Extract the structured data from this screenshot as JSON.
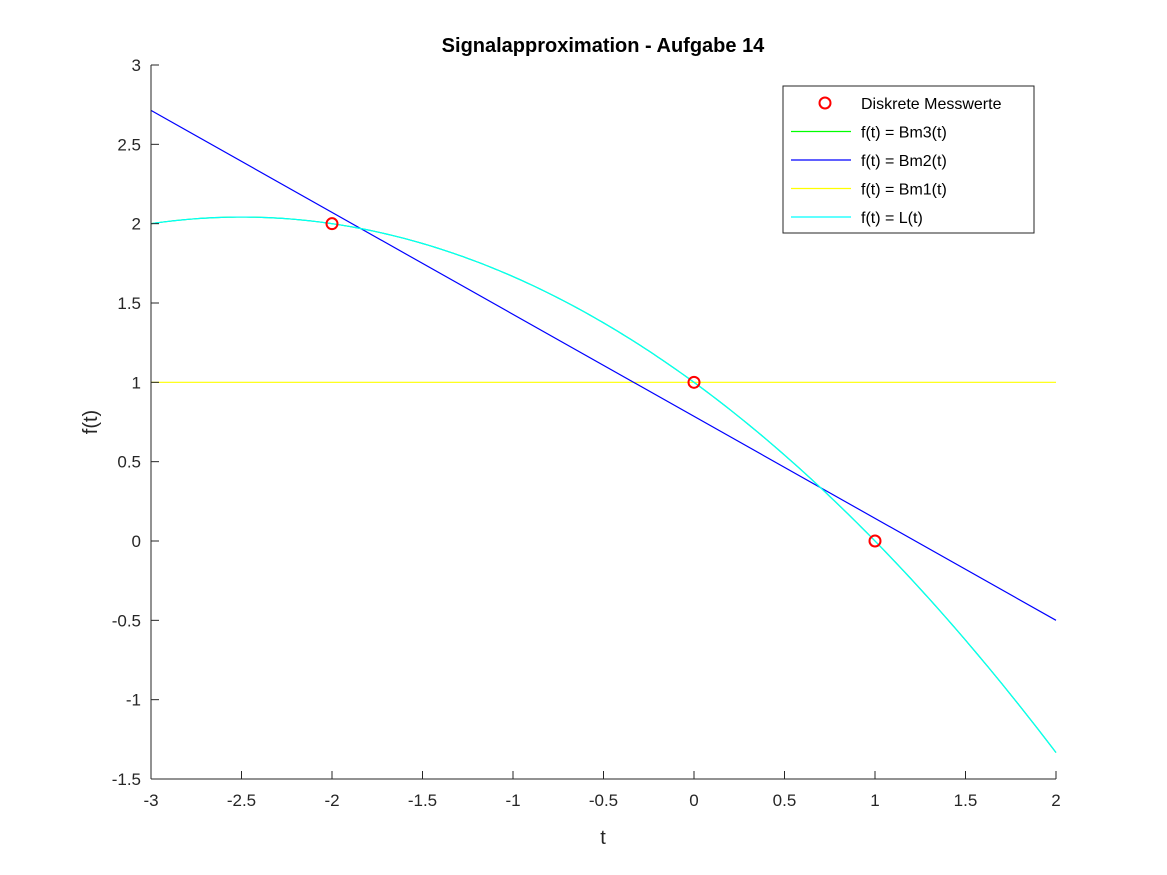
{
  "chart_data": {
    "type": "line",
    "title": "Signalapproximation - Aufgabe 14",
    "xlabel": "t",
    "ylabel": "f(t)",
    "xlim": [
      -3,
      2
    ],
    "ylim": [
      -1.5,
      3
    ],
    "xticks": [
      -3,
      -2.5,
      -2,
      -1.5,
      -1,
      -0.5,
      0,
      0.5,
      1,
      1.5,
      2
    ],
    "xtick_labels": [
      "-3",
      "-2.5",
      "-2",
      "-1.5",
      "-1",
      "-0.5",
      "0",
      "0.5",
      "1",
      "1.5",
      "2"
    ],
    "yticks": [
      -1.5,
      -1,
      -0.5,
      0,
      0.5,
      1,
      1.5,
      2,
      2.5,
      3
    ],
    "ytick_labels": [
      "-1.5",
      "-1",
      "-0.5",
      "0",
      "0.5",
      "1",
      "1.5",
      "2",
      "2.5",
      "3"
    ],
    "grid": false,
    "legend_position": "top-right",
    "points": {
      "name": "Diskrete Messwerte",
      "color": "#ff0000",
      "x": [
        -2,
        0,
        1
      ],
      "y": [
        2,
        1,
        0
      ]
    },
    "series": [
      {
        "name": "f(t) = Bm3(t)",
        "color": "#00ff00",
        "x": [
          -3,
          -2.5,
          -2,
          -1.5,
          -1,
          -0.5,
          0,
          0.5,
          1,
          1.5,
          2
        ],
        "y": [
          2,
          2.042,
          2,
          1.875,
          1.667,
          1.375,
          1,
          0.542,
          0,
          -0.625,
          -1.333
        ]
      },
      {
        "name": "f(t) = Bm2(t)",
        "color": "#0000ff",
        "x": [
          -3,
          2
        ],
        "y": [
          2.714,
          -0.5
        ]
      },
      {
        "name": "f(t) = Bm1(t)",
        "color": "#ffff00",
        "x": [
          -3,
          2
        ],
        "y": [
          1,
          1
        ]
      },
      {
        "name": "f(t) = L(t)",
        "color": "#00ffff",
        "x": [
          -3,
          -2.5,
          -2,
          -1.5,
          -1,
          -0.5,
          0,
          0.5,
          1,
          1.5,
          2
        ],
        "y": [
          2,
          2.042,
          2,
          1.875,
          1.667,
          1.375,
          1,
          0.542,
          0,
          -0.625,
          -1.333
        ]
      }
    ]
  }
}
